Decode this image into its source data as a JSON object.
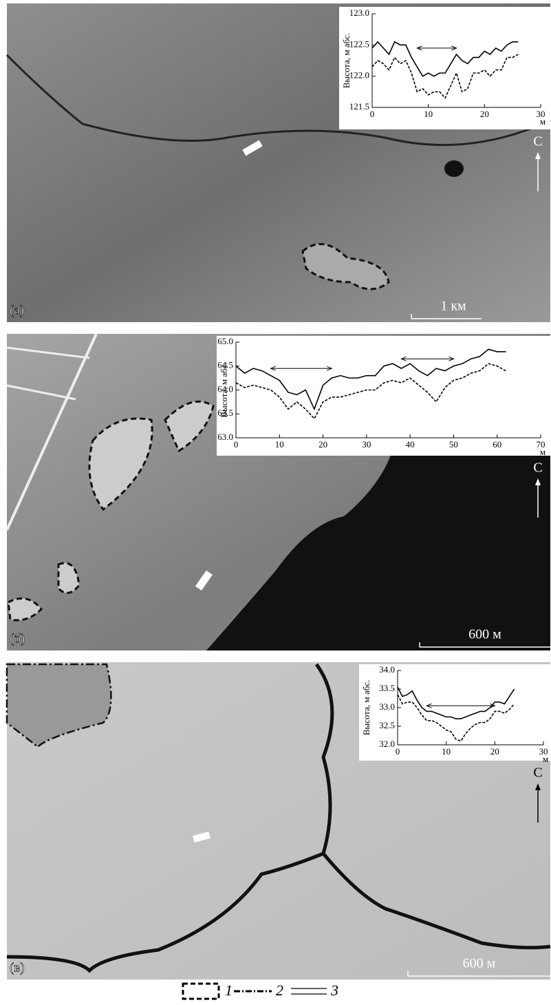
{
  "chart_data": [
    {
      "type": "line",
      "ylabel": "Высота, м абс.",
      "xlabel": "м",
      "xlim": [
        0,
        30
      ],
      "xticks": [
        0,
        10,
        20,
        30
      ],
      "ylim": [
        121.5,
        123.0
      ],
      "yticks": [
        121.5,
        {
          "value": 122,
          "label": "122.0"
        },
        122.5,
        {
          "value": 123,
          "label": "123.0"
        }
      ],
      "x": [
        0,
        1,
        2,
        3,
        4,
        5,
        6,
        7,
        8,
        9,
        10,
        11,
        12,
        13,
        14,
        15,
        16,
        17,
        18,
        19,
        20,
        21,
        22,
        23,
        24,
        25,
        26
      ],
      "series": [
        {
          "color": "#000",
          "dash": false,
          "values": [
            122.45,
            122.55,
            122.45,
            122.35,
            122.55,
            122.5,
            122.5,
            122.3,
            122.15,
            122.0,
            122.05,
            122.0,
            122.05,
            122.05,
            122.2,
            122.35,
            122.25,
            122.2,
            122.3,
            122.3,
            122.4,
            122.35,
            122.45,
            122.4,
            122.5,
            122.55,
            122.55
          ]
        },
        {
          "color": "#000",
          "dash": true,
          "values": [
            122.15,
            122.25,
            122.2,
            122.1,
            122.3,
            122.2,
            122.25,
            122.05,
            121.75,
            121.8,
            121.7,
            121.75,
            121.75,
            121.65,
            121.85,
            122.05,
            121.75,
            121.8,
            122.05,
            122.05,
            122.1,
            122.0,
            122.1,
            122.1,
            122.3,
            122.3,
            122.35
          ]
        }
      ],
      "arrows": [
        {
          "x": [
            8,
            15
          ],
          "y": 122.45
        }
      ]
    },
    {
      "type": "line",
      "ylabel": "Высота, м абс.",
      "xlabel": "м",
      "xlim": [
        0,
        70
      ],
      "xticks": [
        0,
        10,
        20,
        30,
        40,
        50,
        60,
        70
      ],
      "ylim": [
        63.0,
        65.0
      ],
      "yticks": [
        {
          "value": 63,
          "label": "63.0"
        },
        63.5,
        {
          "value": 64,
          "label": "64.0"
        },
        64.5,
        {
          "value": 65,
          "label": "65.0"
        }
      ],
      "x": [
        0,
        2,
        4,
        6,
        8,
        10,
        12,
        14,
        16,
        18,
        20,
        22,
        24,
        26,
        28,
        30,
        32,
        34,
        36,
        38,
        40,
        42,
        44,
        46,
        48,
        50,
        52,
        54,
        56,
        58,
        60,
        62
      ],
      "series": [
        {
          "color": "#000",
          "dash": false,
          "values": [
            64.5,
            64.35,
            64.45,
            64.4,
            64.3,
            64.2,
            63.95,
            63.9,
            64.0,
            63.6,
            64.1,
            64.25,
            64.3,
            64.25,
            64.25,
            64.3,
            64.3,
            64.5,
            64.55,
            64.45,
            64.55,
            64.4,
            64.3,
            64.45,
            64.4,
            64.5,
            64.55,
            64.65,
            64.7,
            64.85,
            64.8,
            64.8
          ]
        },
        {
          "color": "#000",
          "dash": true,
          "values": [
            64.15,
            64.05,
            64.1,
            64.05,
            64.0,
            63.85,
            63.6,
            63.75,
            63.6,
            63.4,
            63.75,
            63.85,
            63.85,
            63.9,
            63.95,
            64.0,
            64.0,
            64.15,
            64.2,
            64.15,
            64.25,
            64.1,
            63.95,
            63.75,
            64.05,
            64.2,
            64.25,
            64.35,
            64.4,
            64.55,
            64.5,
            64.4
          ]
        }
      ],
      "arrows": [
        {
          "x": [
            8,
            22
          ],
          "y": 64.45
        },
        {
          "x": [
            38,
            50
          ],
          "y": 64.65
        }
      ]
    },
    {
      "type": "line",
      "ylabel": "Высота, м абс.",
      "xlabel": "м",
      "xlim": [
        0,
        30
      ],
      "xticks": [
        0,
        10,
        20,
        30
      ],
      "ylim": [
        32.0,
        34.0
      ],
      "yticks": [
        {
          "value": 32,
          "label": "32.0"
        },
        32.5,
        {
          "value": 33,
          "label": "33.0"
        },
        33.5,
        {
          "value": 34,
          "label": "34.0"
        }
      ],
      "x": [
        0,
        1,
        2,
        3,
        4,
        5,
        6,
        7,
        8,
        9,
        10,
        11,
        12,
        13,
        14,
        15,
        16,
        17,
        18,
        19,
        20,
        21,
        22,
        23,
        24
      ],
      "series": [
        {
          "color": "#000",
          "dash": false,
          "values": [
            33.55,
            33.3,
            33.35,
            33.45,
            33.2,
            33.0,
            32.9,
            32.9,
            32.85,
            32.8,
            32.75,
            32.75,
            32.7,
            32.7,
            32.75,
            32.8,
            32.85,
            32.9,
            32.9,
            33.0,
            33.15,
            33.15,
            33.1,
            33.3,
            33.5
          ]
        },
        {
          "color": "#000",
          "dash": true,
          "values": [
            33.35,
            33.1,
            33.15,
            33.15,
            33.0,
            32.8,
            32.65,
            32.65,
            32.6,
            32.5,
            32.4,
            32.35,
            32.15,
            32.1,
            32.3,
            32.45,
            32.55,
            32.6,
            32.6,
            32.7,
            32.9,
            32.9,
            32.85,
            32.95,
            33.1
          ]
        }
      ],
      "arrows": [
        {
          "x": [
            6,
            20
          ],
          "y": 33.05
        }
      ]
    }
  ],
  "panels": [
    {
      "label": "(а)",
      "scale": "1 км",
      "north": "С"
    },
    {
      "label": "(б)",
      "scale": "600 м",
      "north": "С"
    },
    {
      "label": "(в)",
      "scale": "600 м",
      "north": "С"
    }
  ],
  "legend": [
    "1",
    "2",
    "3"
  ]
}
